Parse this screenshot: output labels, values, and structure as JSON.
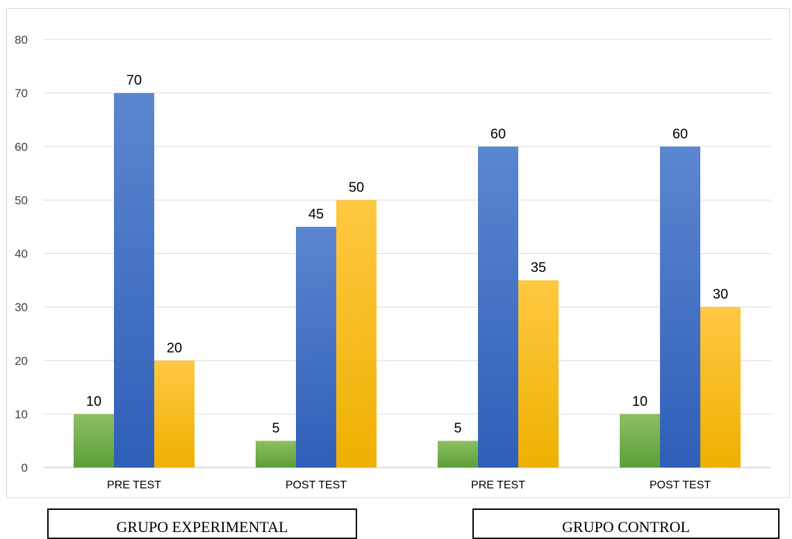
{
  "chart_data": {
    "type": "bar",
    "title": "",
    "xlabel": "",
    "ylabel": "",
    "categories": [
      "PRE TEST",
      "POST TEST",
      "PRE TEST",
      "POST TEST"
    ],
    "groups": [
      {
        "label": "GRUPO EXPERIMENTAL",
        "categories": [
          0,
          1
        ]
      },
      {
        "label": "GRUPO CONTROL",
        "categories": [
          2,
          3
        ]
      }
    ],
    "series": [
      {
        "values": [
          10,
          5,
          5,
          10
        ],
        "color": "#70ad47"
      },
      {
        "values": [
          70,
          45,
          60,
          60
        ],
        "color": "#4472c4"
      },
      {
        "values": [
          20,
          50,
          35,
          30
        ],
        "color": "#ffc000"
      }
    ],
    "ylim": [
      0,
      80
    ],
    "yticks": [
      0,
      10,
      20,
      30,
      40,
      50,
      60,
      70,
      80
    ],
    "grid": true,
    "legend": "none",
    "data_labels": true
  }
}
